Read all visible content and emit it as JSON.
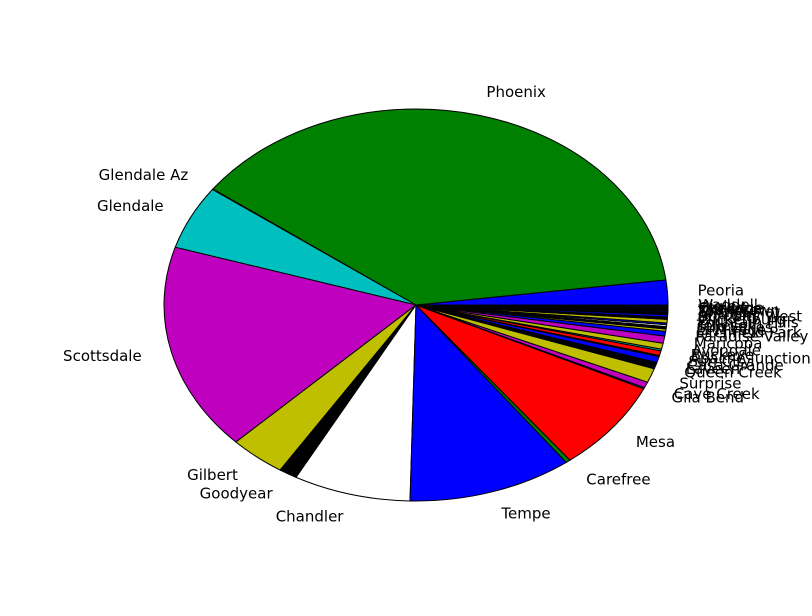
{
  "chart_data": {
    "type": "pie",
    "title": "",
    "start_angle_deg": 0,
    "direction": "counterclockwise",
    "slices": [
      {
        "label": "Peoria",
        "value": 2.1,
        "color": "#0000ff"
      },
      {
        "label": "Phoenix",
        "value": 38.8,
        "color": "#008000"
      },
      {
        "label": "Glendale Az",
        "value": 0.05,
        "color": "#ff0000"
      },
      {
        "label": "Glendale",
        "value": 5.4,
        "color": "#00bfbf"
      },
      {
        "label": "Scottsdale",
        "value": 17.5,
        "color": "#bf00bf"
      },
      {
        "label": "Gilbert",
        "value": 3.7,
        "color": "#bfbf00"
      },
      {
        "label": "Goodyear",
        "value": 1.2,
        "color": "#000000"
      },
      {
        "label": "Chandler",
        "value": 7.7,
        "color": "#ffffff"
      },
      {
        "label": "Tempe",
        "value": 10.8,
        "color": "#0000ff"
      },
      {
        "label": "Carefree",
        "value": 0.3,
        "color": "#008000"
      },
      {
        "label": "Mesa",
        "value": 7.7,
        "color": "#ff0000"
      },
      {
        "label": "Gila Bend",
        "value": 0.1,
        "color": "#00bfbf"
      },
      {
        "label": "Cave Creek",
        "value": 0.5,
        "color": "#bf00bf"
      },
      {
        "label": "Surprise",
        "value": 1.2,
        "color": "#bfbf00"
      },
      {
        "label": "Queen Creek",
        "value": 0.5,
        "color": "#000000"
      },
      {
        "label": "Laveen",
        "value": 0.05,
        "color": "#ffffff"
      },
      {
        "label": "Casa Grande",
        "value": 0.5,
        "color": "#0000ff"
      },
      {
        "label": "Sun City",
        "value": 0.1,
        "color": "#008000"
      },
      {
        "label": "Apache Junction",
        "value": 0.4,
        "color": "#ff0000"
      },
      {
        "label": "Buckeye",
        "value": 0.15,
        "color": "#00bfbf"
      },
      {
        "label": "Avondale",
        "value": 0.5,
        "color": "#bfbf00"
      },
      {
        "label": "Maricopa",
        "value": 0.6,
        "color": "#bf00bf"
      },
      {
        "label": "Paradise Valley",
        "value": 0.4,
        "color": "#0000ff"
      },
      {
        "label": "Litchfield Park",
        "value": 0.2,
        "color": "#bfbf00"
      },
      {
        "label": "El Mirage",
        "value": 0.2,
        "color": "#000000"
      },
      {
        "label": "Sun Lakes",
        "value": 0.15,
        "color": "#ffffff"
      },
      {
        "label": "Tolleson",
        "value": 0.15,
        "color": "#0000ff"
      },
      {
        "label": "Fountain Hills",
        "value": 0.3,
        "color": "#bfbf00"
      },
      {
        "label": "Wickenburg",
        "value": 0.2,
        "color": "#000000"
      },
      {
        "label": "Sun City West",
        "value": 0.2,
        "color": "#0000ff"
      },
      {
        "label": "Anthem",
        "value": 0.2,
        "color": "#000000"
      },
      {
        "label": "Tortilla Flat",
        "value": 0.1,
        "color": "#0000ff"
      },
      {
        "label": "Youngtown",
        "value": 0.1,
        "color": "#000000"
      },
      {
        "label": "Florence",
        "value": 0.1,
        "color": "#0000ff"
      },
      {
        "label": "Coolidge",
        "value": 0.1,
        "color": "#000000"
      },
      {
        "label": "Higley",
        "value": 0.1,
        "color": "#0000ff"
      },
      {
        "label": "Waddell",
        "value": 0.1,
        "color": "#000000"
      }
    ]
  }
}
